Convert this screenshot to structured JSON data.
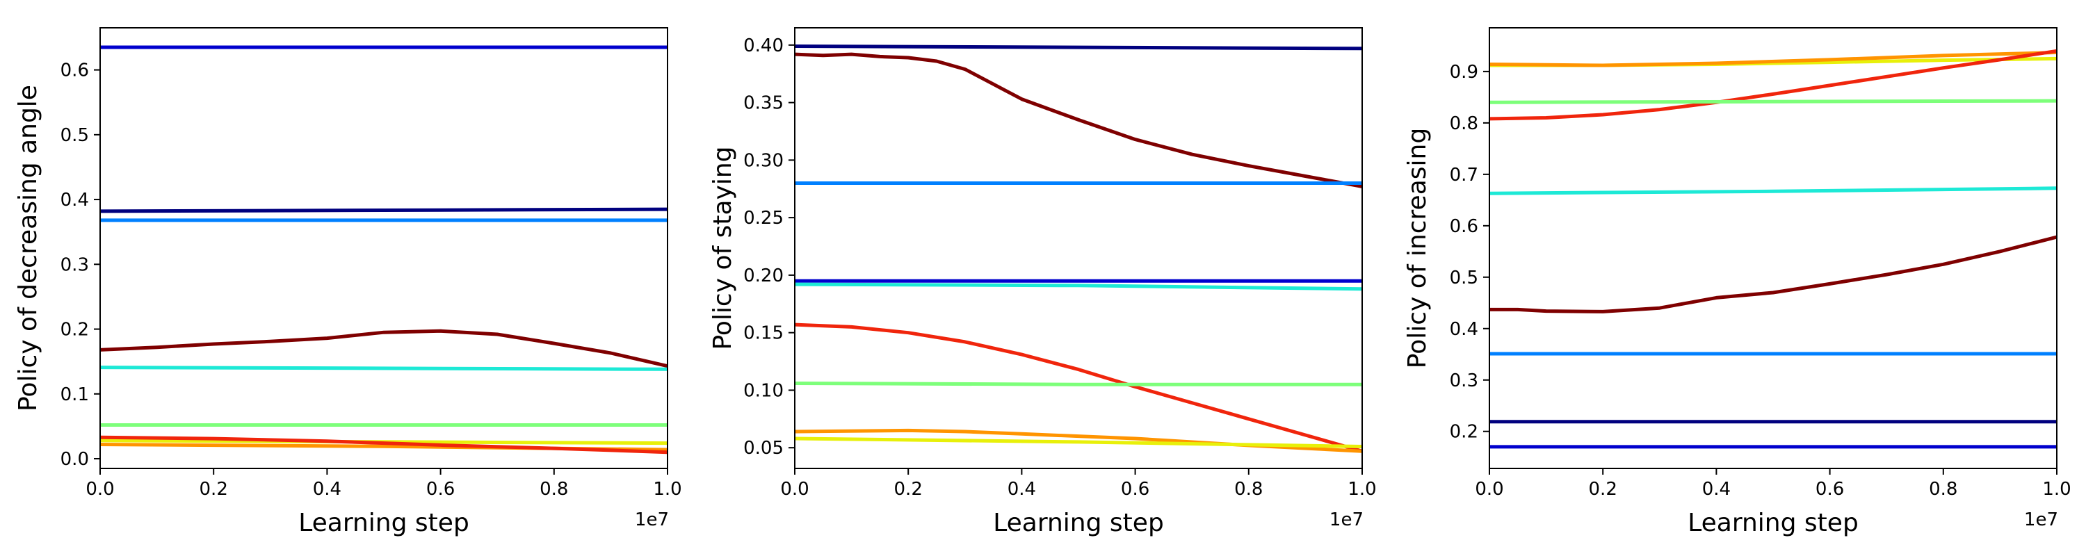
{
  "chart_data": [
    {
      "type": "line",
      "xlabel": "Learning step",
      "ylabel": "Policy of decreasing angle",
      "x_offset_label": "1e7",
      "xlim": [
        0,
        1.0
      ],
      "ylim": [
        -0.015,
        0.665
      ],
      "xticks": [
        "0.0",
        "0.2",
        "0.4",
        "0.6",
        "0.8",
        "1.0"
      ],
      "yticks": [
        "0.0",
        "0.1",
        "0.2",
        "0.3",
        "0.4",
        "0.5",
        "0.6"
      ],
      "grid": false,
      "series": [
        {
          "color": "#0000cd",
          "x": [
            0,
            1.0
          ],
          "y": [
            0.635,
            0.635
          ]
        },
        {
          "color": "#00007f",
          "x": [
            0,
            1.0
          ],
          "y": [
            0.382,
            0.385
          ]
        },
        {
          "color": "#0080ff",
          "x": [
            0,
            1.0
          ],
          "y": [
            0.368,
            0.368
          ]
        },
        {
          "color": "#7f0000",
          "x": [
            0,
            0.1,
            0.2,
            0.3,
            0.4,
            0.5,
            0.6,
            0.7,
            0.8,
            0.9,
            1.0
          ],
          "y": [
            0.168,
            0.172,
            0.177,
            0.181,
            0.186,
            0.195,
            0.197,
            0.192,
            0.178,
            0.163,
            0.143
          ]
        },
        {
          "color": "#1de9d6",
          "x": [
            0,
            1.0
          ],
          "y": [
            0.141,
            0.138
          ]
        },
        {
          "color": "#7dff7a",
          "x": [
            0,
            1.0
          ],
          "y": [
            0.052,
            0.052
          ]
        },
        {
          "color": "#e8f00a",
          "x": [
            0,
            0.5,
            1.0
          ],
          "y": [
            0.028,
            0.026,
            0.024
          ]
        },
        {
          "color": "#ff9400",
          "x": [
            0,
            0.5,
            1.0
          ],
          "y": [
            0.022,
            0.019,
            0.014
          ]
        },
        {
          "color": "#f0250c",
          "x": [
            0,
            0.2,
            0.4,
            0.6,
            0.8,
            1.0
          ],
          "y": [
            0.033,
            0.031,
            0.027,
            0.021,
            0.016,
            0.01
          ]
        }
      ]
    },
    {
      "type": "line",
      "xlabel": "Learning step",
      "ylabel": "Policy of staying",
      "x_offset_label": "1e7",
      "xlim": [
        0,
        1.0
      ],
      "ylim": [
        0.032,
        0.415
      ],
      "xticks": [
        "0.0",
        "0.2",
        "0.4",
        "0.6",
        "0.8",
        "1.0"
      ],
      "yticks": [
        "0.05",
        "0.10",
        "0.15",
        "0.20",
        "0.25",
        "0.30",
        "0.35",
        "0.40"
      ],
      "grid": false,
      "series": [
        {
          "color": "#00007f",
          "x": [
            0,
            1.0
          ],
          "y": [
            0.399,
            0.397
          ]
        },
        {
          "color": "#7f0000",
          "x": [
            0,
            0.05,
            0.1,
            0.15,
            0.2,
            0.25,
            0.3,
            0.35,
            0.4,
            0.5,
            0.6,
            0.7,
            0.8,
            0.9,
            1.0
          ],
          "y": [
            0.392,
            0.391,
            0.392,
            0.39,
            0.389,
            0.386,
            0.379,
            0.366,
            0.353,
            0.335,
            0.318,
            0.305,
            0.295,
            0.286,
            0.277
          ]
        },
        {
          "color": "#0080ff",
          "x": [
            0,
            1.0
          ],
          "y": [
            0.28,
            0.28
          ]
        },
        {
          "color": "#0000cd",
          "x": [
            0,
            1.0
          ],
          "y": [
            0.195,
            0.195
          ]
        },
        {
          "color": "#1de9d6",
          "x": [
            0,
            0.5,
            1.0
          ],
          "y": [
            0.192,
            0.191,
            0.188
          ]
        },
        {
          "color": "#f0250c",
          "x": [
            0,
            0.1,
            0.2,
            0.3,
            0.4,
            0.5,
            0.6,
            0.7,
            0.8,
            0.9,
            1.0
          ],
          "y": [
            0.157,
            0.155,
            0.15,
            0.142,
            0.131,
            0.118,
            0.103,
            0.089,
            0.075,
            0.061,
            0.047
          ]
        },
        {
          "color": "#7dff7a",
          "x": [
            0,
            0.5,
            1.0
          ],
          "y": [
            0.106,
            0.105,
            0.105
          ]
        },
        {
          "color": "#ff9400",
          "x": [
            0,
            0.2,
            0.3,
            0.4,
            0.6,
            0.8,
            1.0
          ],
          "y": [
            0.064,
            0.065,
            0.064,
            0.062,
            0.058,
            0.052,
            0.047
          ]
        },
        {
          "color": "#e8f00a",
          "x": [
            0,
            0.5,
            1.0
          ],
          "y": [
            0.058,
            0.055,
            0.051
          ]
        }
      ]
    },
    {
      "type": "line",
      "xlabel": "Learning step",
      "ylabel": "Policy of increasing",
      "x_offset_label": "1e7",
      "xlim": [
        0,
        1.0
      ],
      "ylim": [
        0.128,
        0.985
      ],
      "xticks": [
        "0.0",
        "0.2",
        "0.4",
        "0.6",
        "0.8",
        "1.0"
      ],
      "yticks": [
        "0.2",
        "0.3",
        "0.4",
        "0.5",
        "0.6",
        "0.7",
        "0.8",
        "0.9"
      ],
      "grid": false,
      "series": [
        {
          "color": "#e8f00a",
          "x": [
            0,
            0.2,
            0.4,
            0.6,
            0.8,
            1.0
          ],
          "y": [
            0.912,
            0.912,
            0.914,
            0.918,
            0.922,
            0.925
          ]
        },
        {
          "color": "#ff9400",
          "x": [
            0,
            0.2,
            0.4,
            0.6,
            0.8,
            1.0
          ],
          "y": [
            0.914,
            0.912,
            0.916,
            0.923,
            0.931,
            0.937
          ]
        },
        {
          "color": "#f0250c",
          "x": [
            0,
            0.1,
            0.2,
            0.3,
            0.4,
            0.5,
            0.6,
            0.7,
            0.8,
            0.9,
            1.0
          ],
          "y": [
            0.808,
            0.81,
            0.816,
            0.826,
            0.84,
            0.856,
            0.873,
            0.89,
            0.907,
            0.923,
            0.94
          ]
        },
        {
          "color": "#7dff7a",
          "x": [
            0,
            1.0
          ],
          "y": [
            0.84,
            0.843
          ]
        },
        {
          "color": "#1de9d6",
          "x": [
            0,
            0.5,
            1.0
          ],
          "y": [
            0.663,
            0.667,
            0.673
          ]
        },
        {
          "color": "#7f0000",
          "x": [
            0,
            0.05,
            0.1,
            0.2,
            0.3,
            0.35,
            0.4,
            0.5,
            0.6,
            0.7,
            0.8,
            0.9,
            1.0
          ],
          "y": [
            0.437,
            0.437,
            0.434,
            0.433,
            0.44,
            0.45,
            0.46,
            0.47,
            0.487,
            0.505,
            0.525,
            0.55,
            0.578
          ]
        },
        {
          "color": "#0080ff",
          "x": [
            0,
            1.0
          ],
          "y": [
            0.351,
            0.351
          ]
        },
        {
          "color": "#00007f",
          "x": [
            0,
            1.0
          ],
          "y": [
            0.219,
            0.219
          ]
        },
        {
          "color": "#0000cd",
          "x": [
            0,
            1.0
          ],
          "y": [
            0.17,
            0.17
          ]
        }
      ]
    }
  ]
}
